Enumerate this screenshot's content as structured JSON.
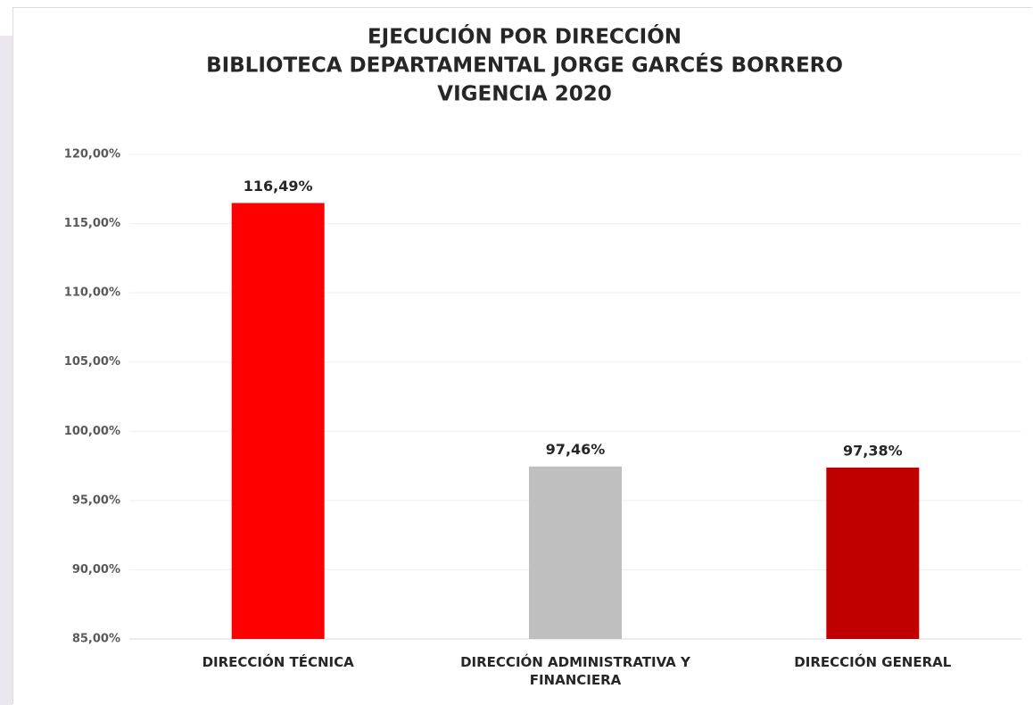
{
  "chart_data": {
    "type": "bar",
    "title": [
      "EJECUCIÓN POR DIRECCIÓN",
      "BIBLIOTECA DEPARTAMENTAL JORGE GARCÉS BORRERO",
      "VIGENCIA 2020"
    ],
    "categories": [
      "DIRECCIÓN TÉCNICA",
      "DIRECCIÓN ADMINISTRATIVA Y FINANCIERA",
      "DIRECCIÓN GENERAL"
    ],
    "values": [
      116.49,
      97.46,
      97.38
    ],
    "value_labels": [
      "116,49%",
      "97,46%",
      "97,38%"
    ],
    "colors": [
      "#ff0000",
      "#bfbfbf",
      "#c00000"
    ],
    "ylim": [
      85,
      120
    ],
    "yticks": [
      {
        "value": 85,
        "label": "85,00%"
      },
      {
        "value": 90,
        "label": "90,00%"
      },
      {
        "value": 95,
        "label": "95,00%"
      },
      {
        "value": 100,
        "label": "100,00%"
      },
      {
        "value": 105,
        "label": "105,00%"
      },
      {
        "value": 110,
        "label": "110,00%"
      },
      {
        "value": 115,
        "label": "115,00%"
      },
      {
        "value": 120,
        "label": "120,00%"
      }
    ],
    "grid": true
  }
}
